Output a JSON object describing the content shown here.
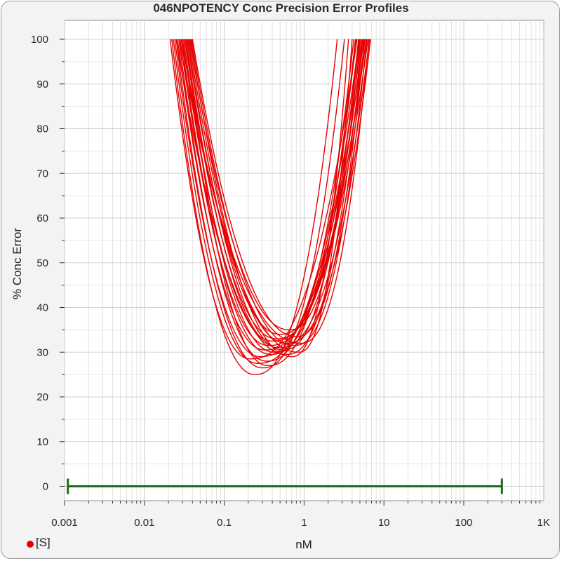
{
  "chart_data": {
    "type": "line",
    "title": "046NPOTENCY Conc Precision Error Profiles",
    "xlabel": "nM",
    "ylabel": "% Conc Error",
    "xscale": "log",
    "xlim": [
      0.001,
      1000
    ],
    "ylim": [
      -5,
      100
    ],
    "x_tick_labels": [
      "0.001",
      "0.01",
      "0.1",
      "1",
      "10",
      "100",
      "1K"
    ],
    "y_ticks": [
      0,
      10,
      20,
      30,
      40,
      50,
      60,
      70,
      80,
      90,
      100
    ],
    "grid": true,
    "legend": {
      "position": "bottom-left",
      "label": "[S]",
      "color": "#e60000"
    },
    "line_color": "#e60000",
    "range_bar": {
      "x_start": 0.0011,
      "x_end": 300,
      "y": 0,
      "color": "#1a6b1a"
    },
    "series": [
      {
        "left_x100": 0.021,
        "min_x": 0.21,
        "min_y": 28.5,
        "right_x100": 4.6
      },
      {
        "left_x100": 0.022,
        "min_x": 0.24,
        "min_y": 25.0,
        "right_x100": 2.6
      },
      {
        "left_x100": 0.023,
        "min_x": 0.26,
        "min_y": 27.5,
        "right_x100": 4.9
      },
      {
        "left_x100": 0.024,
        "min_x": 0.28,
        "min_y": 29.0,
        "right_x100": 5.3
      },
      {
        "left_x100": 0.025,
        "min_x": 0.3,
        "min_y": 26.5,
        "right_x100": 3.2
      },
      {
        "left_x100": 0.026,
        "min_x": 0.32,
        "min_y": 30.5,
        "right_x100": 5.6
      },
      {
        "left_x100": 0.027,
        "min_x": 0.34,
        "min_y": 28.0,
        "right_x100": 4.2
      },
      {
        "left_x100": 0.028,
        "min_x": 0.36,
        "min_y": 31.5,
        "right_x100": 6.0
      },
      {
        "left_x100": 0.029,
        "min_x": 0.38,
        "min_y": 29.5,
        "right_x100": 5.0
      },
      {
        "left_x100": 0.03,
        "min_x": 0.4,
        "min_y": 32.5,
        "right_x100": 6.3
      },
      {
        "left_x100": 0.031,
        "min_x": 0.42,
        "min_y": 30.0,
        "right_x100": 4.4
      },
      {
        "left_x100": 0.032,
        "min_x": 0.45,
        "min_y": 33.0,
        "right_x100": 5.8
      },
      {
        "left_x100": 0.033,
        "min_x": 0.48,
        "min_y": 31.0,
        "right_x100": 6.6
      },
      {
        "left_x100": 0.034,
        "min_x": 0.5,
        "min_y": 34.0,
        "right_x100": 5.4
      },
      {
        "left_x100": 0.035,
        "min_x": 0.55,
        "min_y": 30.5,
        "right_x100": 4.8
      },
      {
        "left_x100": 0.036,
        "min_x": 0.6,
        "min_y": 32.0,
        "right_x100": 6.8
      },
      {
        "left_x100": 0.037,
        "min_x": 0.65,
        "min_y": 35.0,
        "right_x100": 5.1
      },
      {
        "left_x100": 0.038,
        "min_x": 0.7,
        "min_y": 29.0,
        "right_x100": 3.6
      },
      {
        "left_x100": 0.039,
        "min_x": 0.75,
        "min_y": 31.5,
        "right_x100": 6.1
      },
      {
        "left_x100": 0.04,
        "min_x": 0.8,
        "min_y": 33.5,
        "right_x100": 5.7
      },
      {
        "left_x100": 0.029,
        "min_x": 0.85,
        "min_y": 30.0,
        "right_x100": 4.0
      },
      {
        "left_x100": 0.027,
        "min_x": 0.9,
        "min_y": 32.0,
        "right_x100": 6.5
      },
      {
        "left_x100": 0.033,
        "min_x": 0.35,
        "min_y": 27.0,
        "right_x100": 4.5
      },
      {
        "left_x100": 0.025,
        "min_x": 0.6,
        "min_y": 29.5,
        "right_x100": 5.5
      }
    ]
  }
}
